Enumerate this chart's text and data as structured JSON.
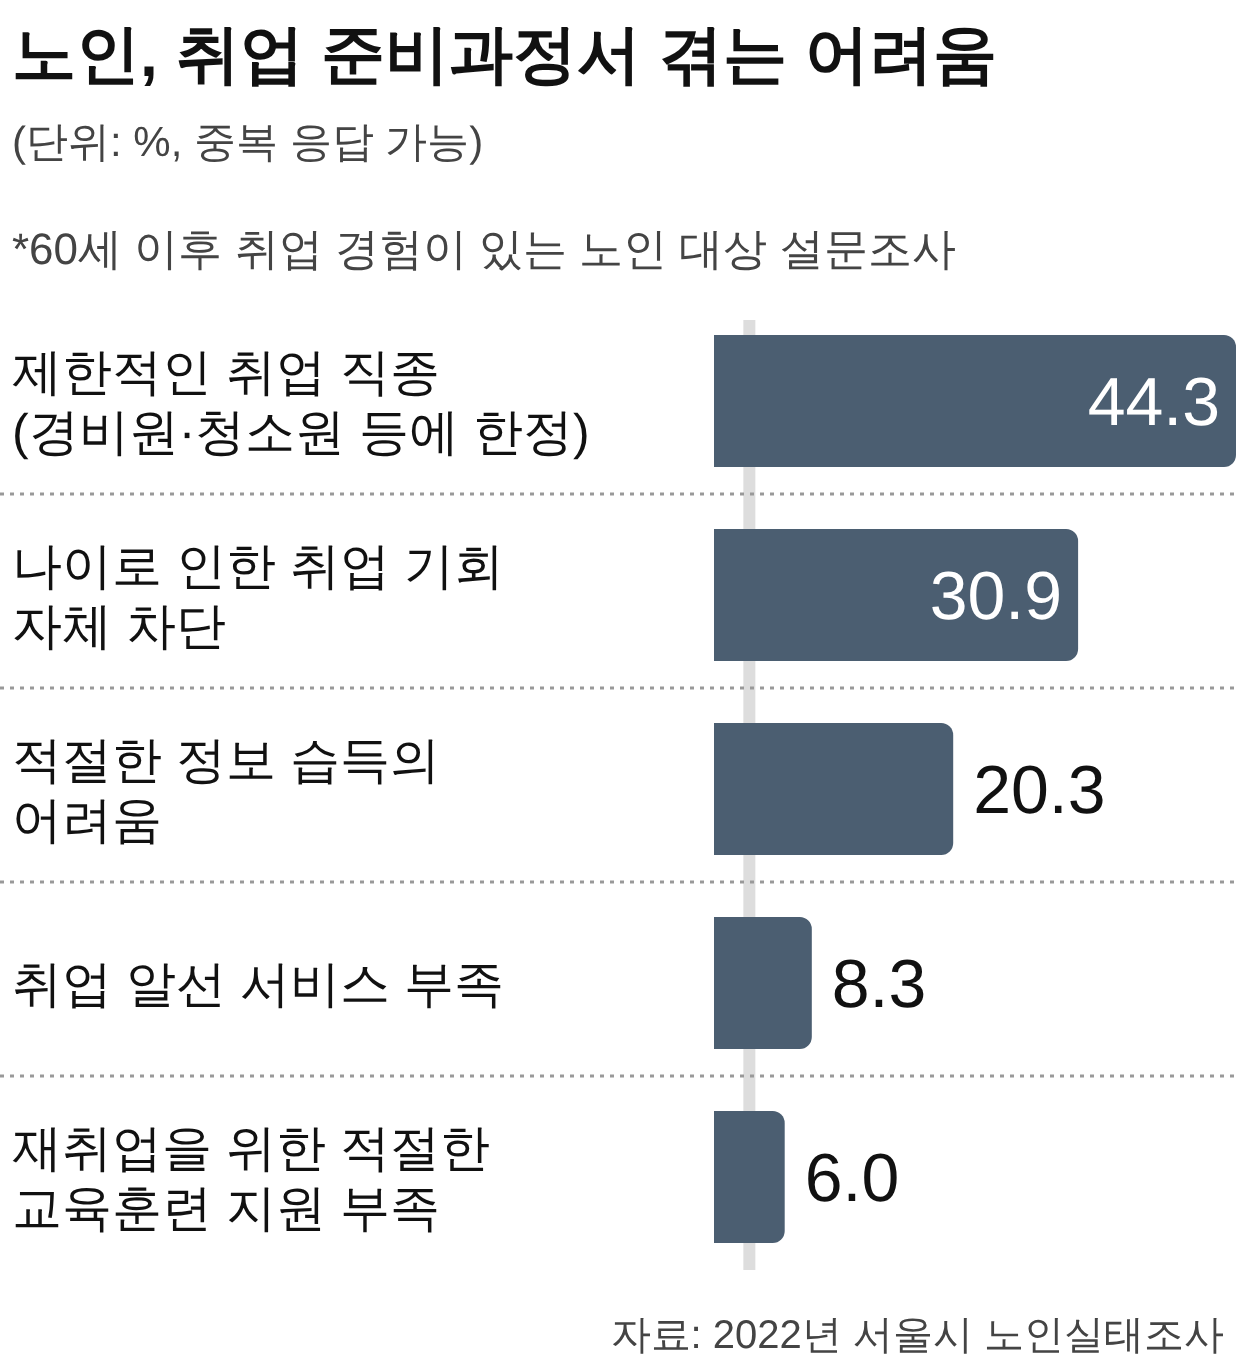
{
  "chart_data": {
    "type": "bar",
    "orientation": "horizontal",
    "relative": false,
    "title": "노인, 취업 준비과정서 겪는 어려움",
    "subtitle": "(단위: %, 중복 응답 가능)",
    "annotations": [
      "*60세 이후 취업 경험이 있는 노인 대상 설문조사",
      "자료: 2022년 서울시 노인실태조사"
    ],
    "categories": [
      "제한적인 취업 직종\n(경비원·청소원 등에 한정)",
      "나이로 인한 취업 기회\n자체 차단",
      "적절한 정보 습득의\n어려움",
      "취업 알선 서비스 부족",
      "재취업을 위한 적절한\n교육훈련 지원 부족"
    ],
    "values": [
      44.3,
      30.9,
      20.3,
      8.3,
      6.0
    ],
    "value_labels": [
      "44.3",
      "30.9",
      "20.3",
      "8.3",
      "6.0"
    ],
    "color": "#4b5e71",
    "ref_lines": [
      {
        "axis": "x",
        "value": 3.0,
        "color": "#dddddd"
      }
    ]
  }
}
